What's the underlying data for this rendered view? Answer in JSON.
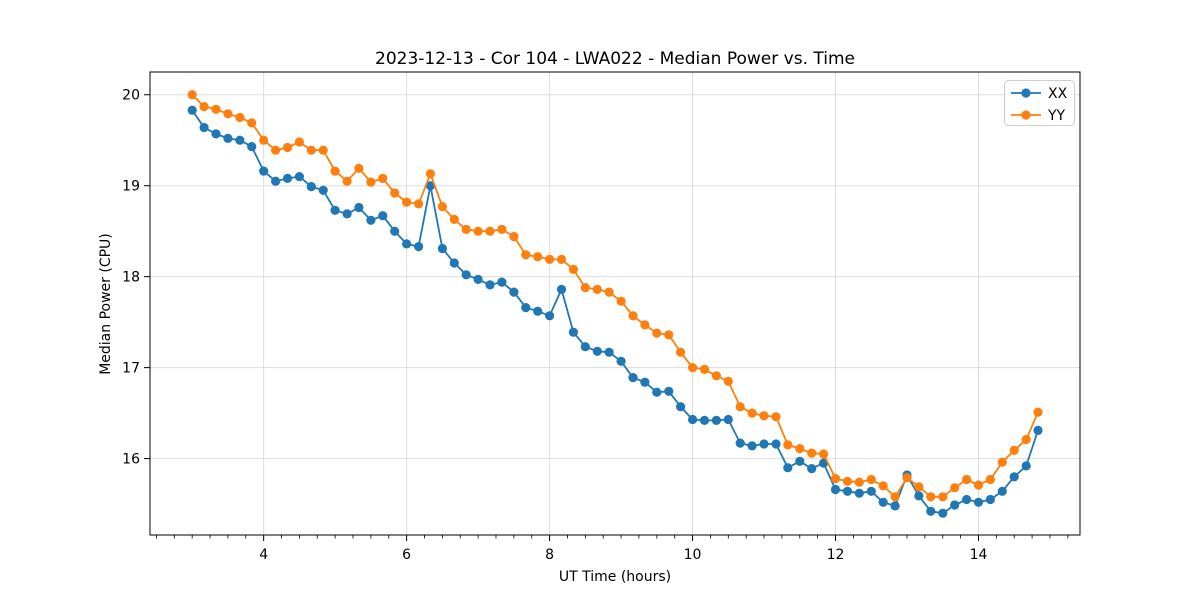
{
  "chart_data": {
    "type": "line",
    "title": "2023-12-13 - Cor 104 - LWA022 - Median Power vs. Time",
    "xlabel": "UT Time (hours)",
    "ylabel": "Median Power (CPU)",
    "xlim": [
      2.41,
      15.42
    ],
    "ylim": [
      15.16,
      20.25
    ],
    "xticks": [
      4,
      6,
      8,
      10,
      12,
      14
    ],
    "yticks": [
      16,
      17,
      18,
      19,
      20
    ],
    "x_minor_step": 0.25,
    "grid": true,
    "legend_position": "upper right",
    "x": [
      3.0,
      3.167,
      3.333,
      3.5,
      3.667,
      3.833,
      4.0,
      4.167,
      4.333,
      4.5,
      4.667,
      4.833,
      5.0,
      5.167,
      5.333,
      5.5,
      5.667,
      5.833,
      6.0,
      6.167,
      6.333,
      6.5,
      6.667,
      6.833,
      7.0,
      7.167,
      7.333,
      7.5,
      7.667,
      7.833,
      8.0,
      8.167,
      8.333,
      8.5,
      8.667,
      8.833,
      9.0,
      9.167,
      9.333,
      9.5,
      9.667,
      9.833,
      10.0,
      10.167,
      10.333,
      10.5,
      10.667,
      10.833,
      11.0,
      11.167,
      11.333,
      11.5,
      11.667,
      11.833,
      12.0,
      12.167,
      12.333,
      12.5,
      12.667,
      12.833,
      13.0,
      13.167,
      13.333,
      13.5,
      13.667,
      13.833,
      14.0,
      14.167,
      14.333,
      14.5,
      14.667,
      14.833
    ],
    "series": [
      {
        "name": "XX",
        "color": "#1f77b4",
        "marker": "circle",
        "values": [
          19.83,
          19.64,
          19.57,
          19.52,
          19.5,
          19.43,
          19.16,
          19.05,
          19.08,
          19.1,
          18.99,
          18.95,
          18.73,
          18.69,
          18.76,
          18.62,
          18.67,
          18.5,
          18.36,
          18.33,
          19.0,
          18.31,
          18.15,
          18.02,
          17.97,
          17.91,
          17.94,
          17.83,
          17.66,
          17.62,
          17.57,
          17.86,
          17.39,
          17.23,
          17.18,
          17.17,
          17.07,
          16.89,
          16.84,
          16.73,
          16.74,
          16.57,
          16.43,
          16.42,
          16.42,
          16.43,
          16.17,
          16.14,
          16.16,
          16.16,
          15.9,
          15.97,
          15.89,
          15.95,
          15.66,
          15.64,
          15.62,
          15.64,
          15.52,
          15.48,
          15.82,
          15.59,
          15.42,
          15.4,
          15.49,
          15.55,
          15.52,
          15.55,
          15.64,
          15.8,
          15.92,
          16.31
        ]
      },
      {
        "name": "YY",
        "color": "#ff7f0e",
        "marker": "circle",
        "values": [
          20.0,
          19.87,
          19.84,
          19.79,
          19.75,
          19.69,
          19.5,
          19.39,
          19.42,
          19.48,
          19.39,
          19.39,
          19.16,
          19.05,
          19.19,
          19.04,
          19.08,
          18.92,
          18.82,
          18.8,
          19.13,
          18.77,
          18.63,
          18.52,
          18.5,
          18.5,
          18.52,
          18.44,
          18.24,
          18.22,
          18.19,
          18.19,
          18.08,
          17.88,
          17.86,
          17.83,
          17.73,
          17.57,
          17.47,
          17.38,
          17.36,
          17.17,
          17.0,
          16.98,
          16.91,
          16.85,
          16.57,
          16.5,
          16.47,
          16.46,
          16.15,
          16.11,
          16.06,
          16.05,
          15.78,
          15.75,
          15.74,
          15.77,
          15.7,
          15.58,
          15.79,
          15.69,
          15.58,
          15.58,
          15.68,
          15.77,
          15.71,
          15.77,
          15.96,
          16.09,
          16.21,
          16.51
        ]
      }
    ]
  }
}
